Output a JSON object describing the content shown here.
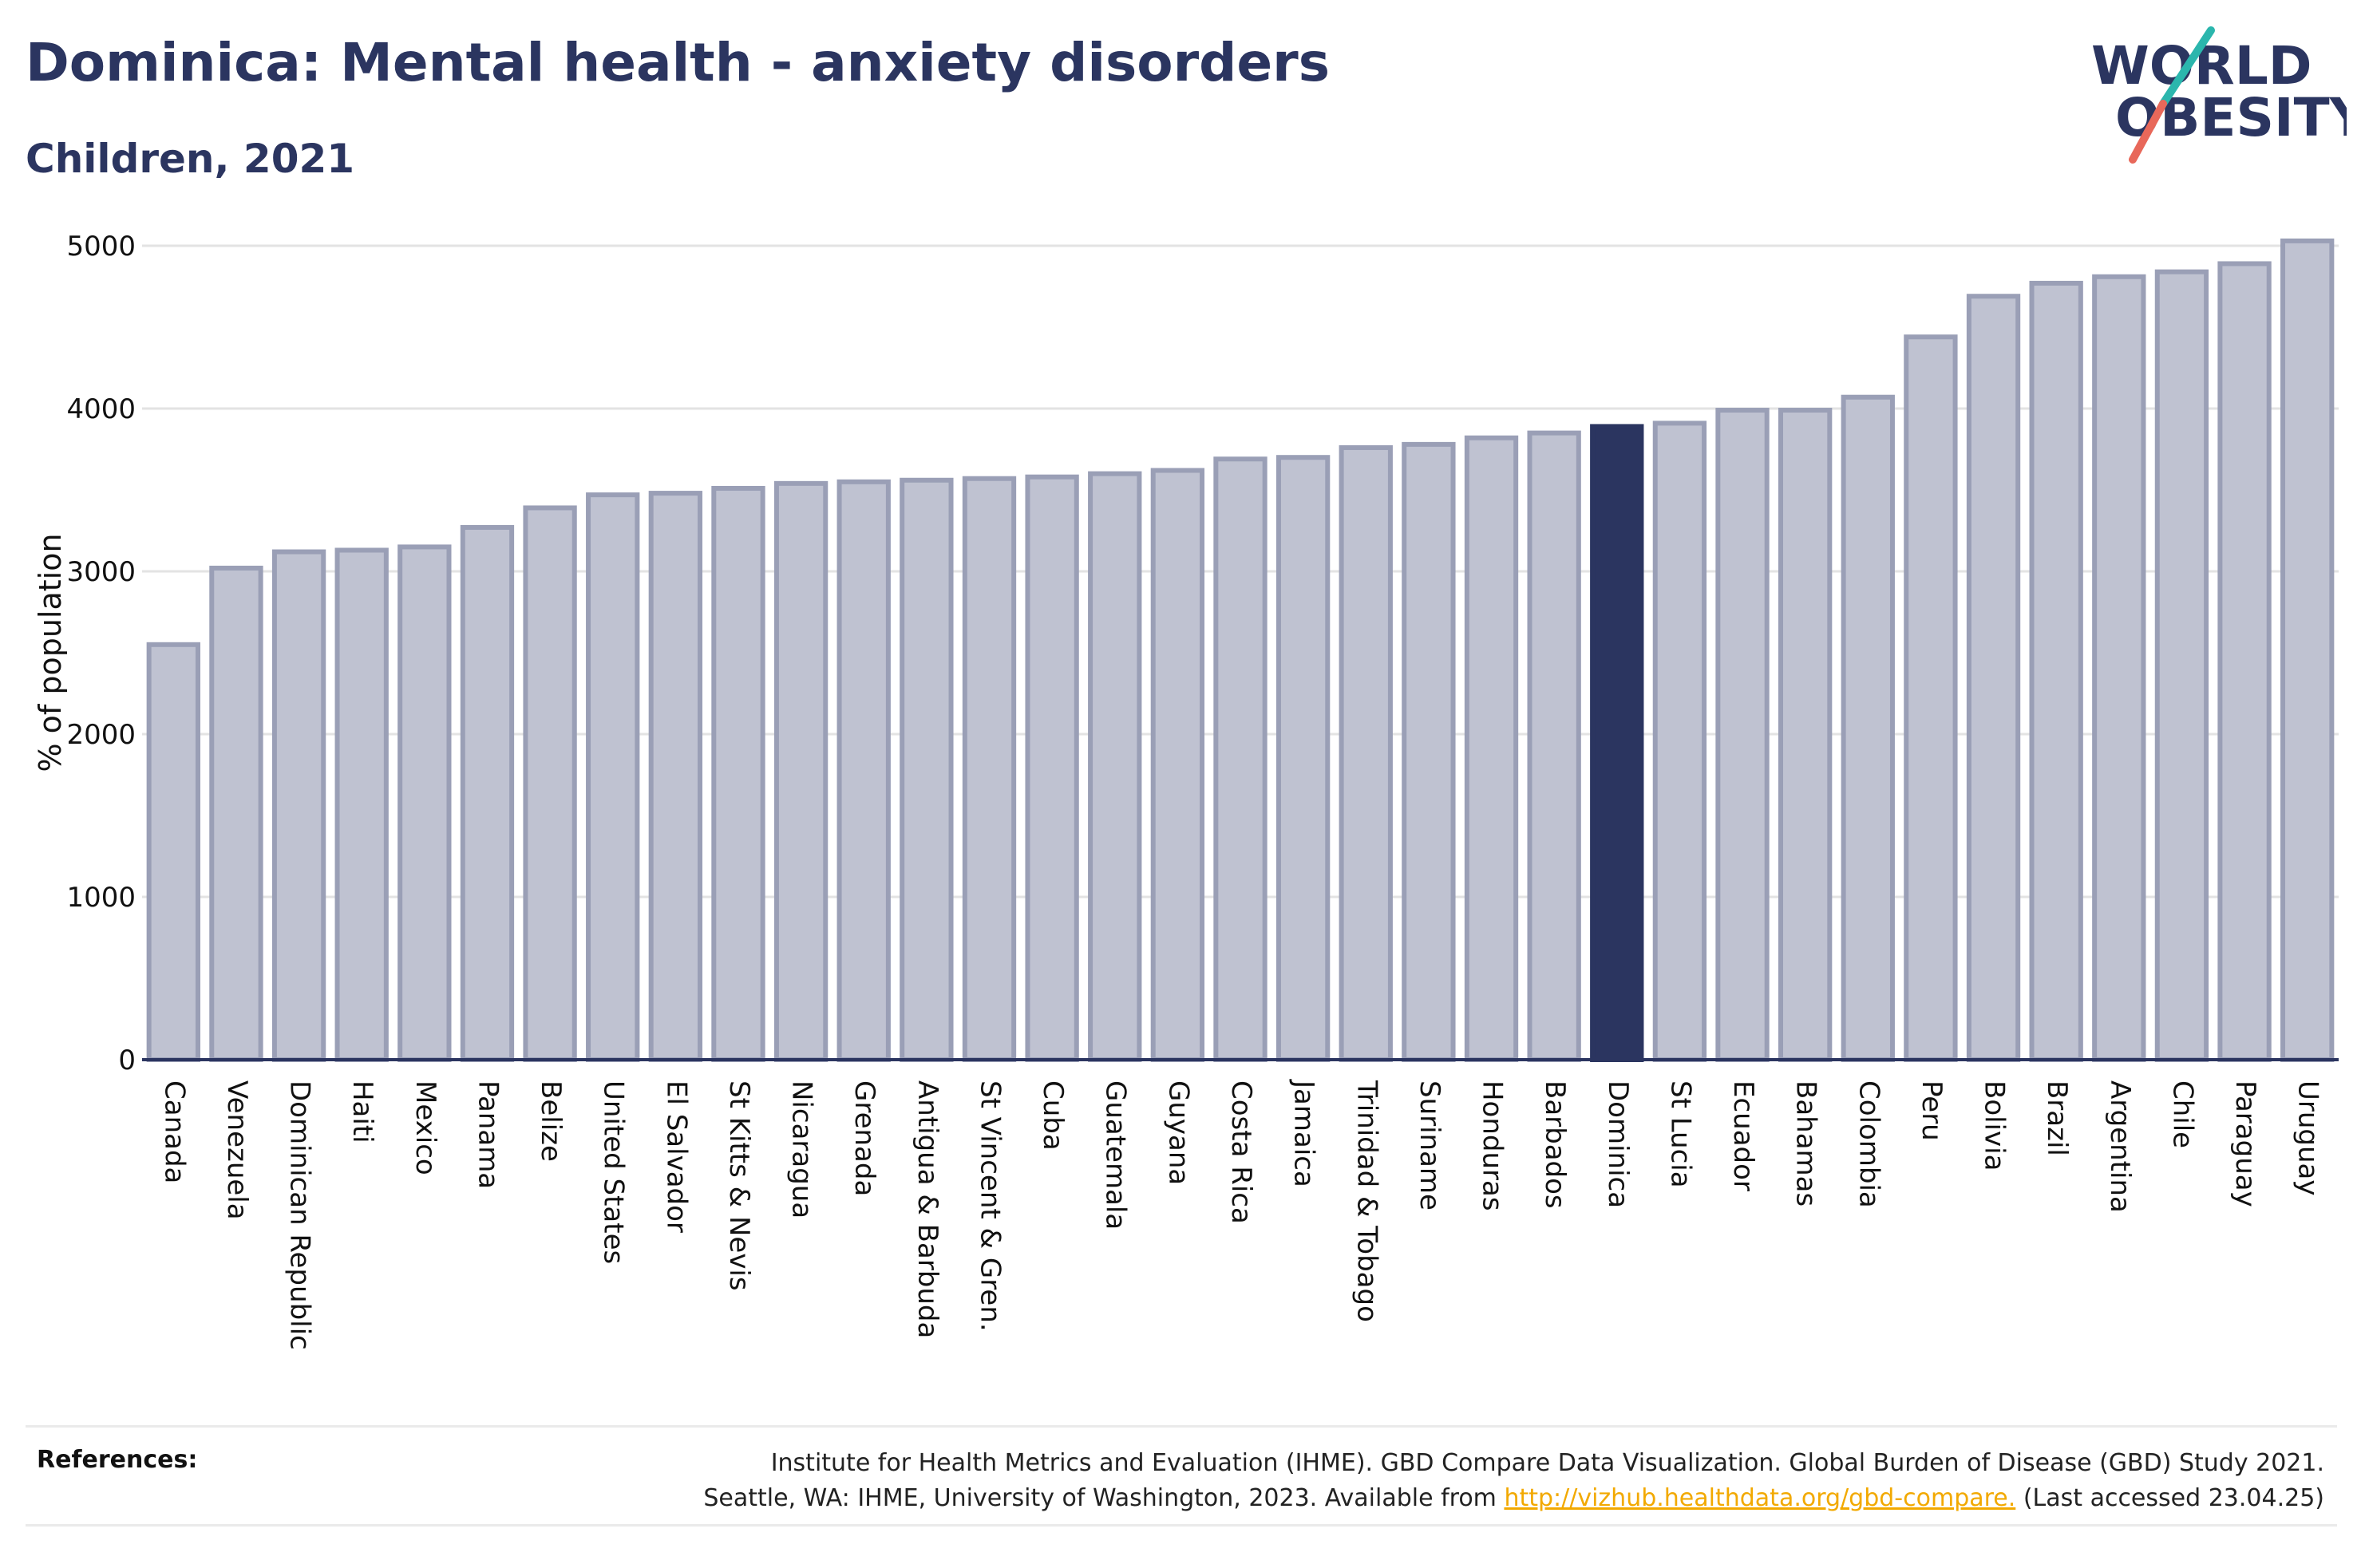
{
  "header": {
    "title": "Dominica: Mental health - anxiety disorders",
    "subtitle": "Children, 2021"
  },
  "logo": {
    "line1": "WORLD",
    "line2": "OBESITY",
    "accent_colors": [
      "#2bb6ad",
      "#e8685a"
    ]
  },
  "colors": {
    "highlight": "#2b3560",
    "bar_fill": "#bfc2d1",
    "bar_stroke": "#9a9fb6"
  },
  "chart_data": {
    "type": "bar",
    "title": "Dominica: Mental health - anxiety disorders",
    "subtitle": "Children, 2021",
    "ylabel": "% of population",
    "ylim": [
      0,
      5000
    ],
    "yticks": [
      0,
      1000,
      2000,
      3000,
      4000,
      5000
    ],
    "highlight": "Dominica",
    "categories": [
      "Canada",
      "Venezuela",
      "Dominican Republic",
      "Haiti",
      "Mexico",
      "Panama",
      "Belize",
      "United States",
      "El Salvador",
      "St Kitts & Nevis",
      "Nicaragua",
      "Grenada",
      "Antigua & Barbuda",
      "St Vincent & Gren.",
      "Cuba",
      "Guatemala",
      "Guyana",
      "Costa Rica",
      "Jamaica",
      "Trinidad & Tobago",
      "Suriname",
      "Honduras",
      "Barbados",
      "Dominica",
      "St Lucia",
      "Ecuador",
      "Bahamas",
      "Colombia",
      "Peru",
      "Bolivia",
      "Brazil",
      "Argentina",
      "Chile",
      "Paraguay",
      "Uruguay"
    ],
    "values": [
      2550,
      3020,
      3120,
      3130,
      3150,
      3270,
      3390,
      3470,
      3480,
      3510,
      3540,
      3550,
      3560,
      3570,
      3580,
      3600,
      3620,
      3690,
      3700,
      3760,
      3780,
      3820,
      3850,
      3890,
      3910,
      3990,
      3990,
      4070,
      4440,
      4690,
      4770,
      4810,
      4840,
      4890,
      5030
    ],
    "grid": true,
    "legend": "none"
  },
  "references": {
    "label": "References:",
    "line1": "Institute for Health Metrics and Evaluation (IHME). GBD Compare Data Visualization. Global Burden of Disease (GBD) Study 2021.",
    "line2_prefix": "Seattle, WA: IHME, University of Washington, 2023. Available from ",
    "link": "http://vizhub.healthdata.org/gbd-compare.",
    "line2_suffix": " (Last accessed 23.04.25)"
  }
}
